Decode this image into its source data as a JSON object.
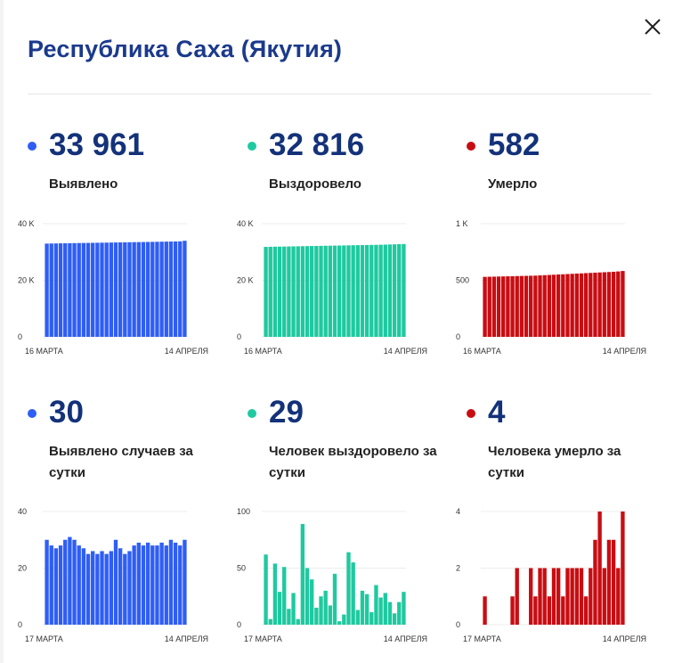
{
  "header": {
    "title": "Республика Саха (Якутия)"
  },
  "colors": {
    "blue": "#2f5ef5",
    "green": "#1fc9a0",
    "red": "#c80d12",
    "title": "#1b3a8c"
  },
  "stats": {
    "detected": {
      "value": "33 961",
      "label": "Выявлено"
    },
    "recovered": {
      "value": "32 816",
      "label": "Выздоровело"
    },
    "died": {
      "value": "582",
      "label": "Умерло"
    },
    "detected_daily": {
      "value": "30",
      "label": "Выявлено случаев за сутки"
    },
    "recovered_daily": {
      "value": "29",
      "label": "Человек выздоровело за сутки"
    },
    "died_daily": {
      "value": "4",
      "label": "Человека умерло за сутки"
    }
  },
  "chart_data": [
    {
      "id": "detected",
      "type": "bar",
      "color": "blue",
      "x_start_label": "16 МАРТА",
      "x_end_label": "14 АПРЕЛЯ",
      "y_ticks": [
        "0",
        "20 K",
        "40 K"
      ],
      "ylim": [
        0,
        40000
      ],
      "values": [
        32958,
        32992,
        33022,
        33048,
        33074,
        33101,
        33128,
        33156,
        33183,
        33206,
        33232,
        33256,
        33282,
        33306,
        33336,
        33361,
        33386,
        33412,
        33436,
        33465,
        33490,
        33517,
        33545,
        33573,
        33600,
        33631,
        33660,
        33688,
        33718,
        33748,
        33961
      ]
    },
    {
      "id": "recovered",
      "type": "bar",
      "color": "green",
      "x_start_label": "16 МАРТА",
      "x_end_label": "14 АПРЕЛЯ",
      "y_ticks": [
        "0",
        "20 K",
        "40 K"
      ],
      "ylim": [
        0,
        40000
      ],
      "values": [
        31800,
        31830,
        31860,
        31890,
        31920,
        31950,
        31980,
        32010,
        32040,
        32070,
        32100,
        32130,
        32160,
        32190,
        32220,
        32250,
        32280,
        32310,
        32340,
        32370,
        32400,
        32430,
        32460,
        32490,
        32520,
        32550,
        32600,
        32650,
        32700,
        32760,
        32816
      ]
    },
    {
      "id": "died",
      "type": "bar",
      "color": "red",
      "x_start_label": "16 МАРТА",
      "x_end_label": "14 АПРЕЛЯ",
      "y_ticks": [
        "0",
        "500",
        "1 K"
      ],
      "ylim": [
        0,
        1000
      ],
      "values": [
        530,
        531,
        532,
        533,
        534,
        535,
        536,
        537,
        538,
        539,
        540,
        541,
        543,
        545,
        547,
        549,
        551,
        553,
        555,
        557,
        559,
        561,
        563,
        565,
        567,
        569,
        571,
        573,
        575,
        578,
        582
      ]
    },
    {
      "id": "detected_daily",
      "type": "bar",
      "color": "blue",
      "x_start_label": "17 МАРТА",
      "x_end_label": "14 АПРЕЛЯ",
      "y_ticks": [
        "0",
        "20",
        "40"
      ],
      "ylim": [
        0,
        40
      ],
      "values": [
        30,
        28,
        27,
        28,
        30,
        31,
        30,
        28,
        27,
        25,
        26,
        25,
        26,
        25,
        26,
        30,
        27,
        25,
        26,
        28,
        29,
        28,
        29,
        28,
        28,
        29,
        28,
        30,
        29,
        28,
        30
      ]
    },
    {
      "id": "recovered_daily",
      "type": "bar",
      "color": "green",
      "x_start_label": "17 МАРТА",
      "x_end_label": "14 АПРЕЛЯ",
      "y_ticks": [
        "0",
        "50",
        "100"
      ],
      "ylim": [
        0,
        100
      ],
      "values": [
        62,
        5,
        54,
        29,
        51,
        14,
        28,
        5,
        89,
        50,
        40,
        15,
        25,
        30,
        17,
        45,
        3,
        9,
        64,
        55,
        13,
        30,
        27,
        11,
        35,
        24,
        28,
        20,
        10,
        20,
        29
      ]
    },
    {
      "id": "died_daily",
      "type": "bar",
      "color": "red",
      "x_start_label": "17 МАРТА",
      "x_end_label": "14 АПРЕЛЯ",
      "y_ticks": [
        "0",
        "2",
        "4"
      ],
      "ylim": [
        0,
        4
      ],
      "values": [
        1,
        0,
        0,
        0,
        0,
        0,
        1,
        2,
        0,
        0,
        2,
        1,
        2,
        2,
        1,
        2,
        2,
        1,
        2,
        2,
        2,
        2,
        1,
        2,
        3,
        4,
        2,
        3,
        3,
        2,
        4
      ]
    }
  ]
}
